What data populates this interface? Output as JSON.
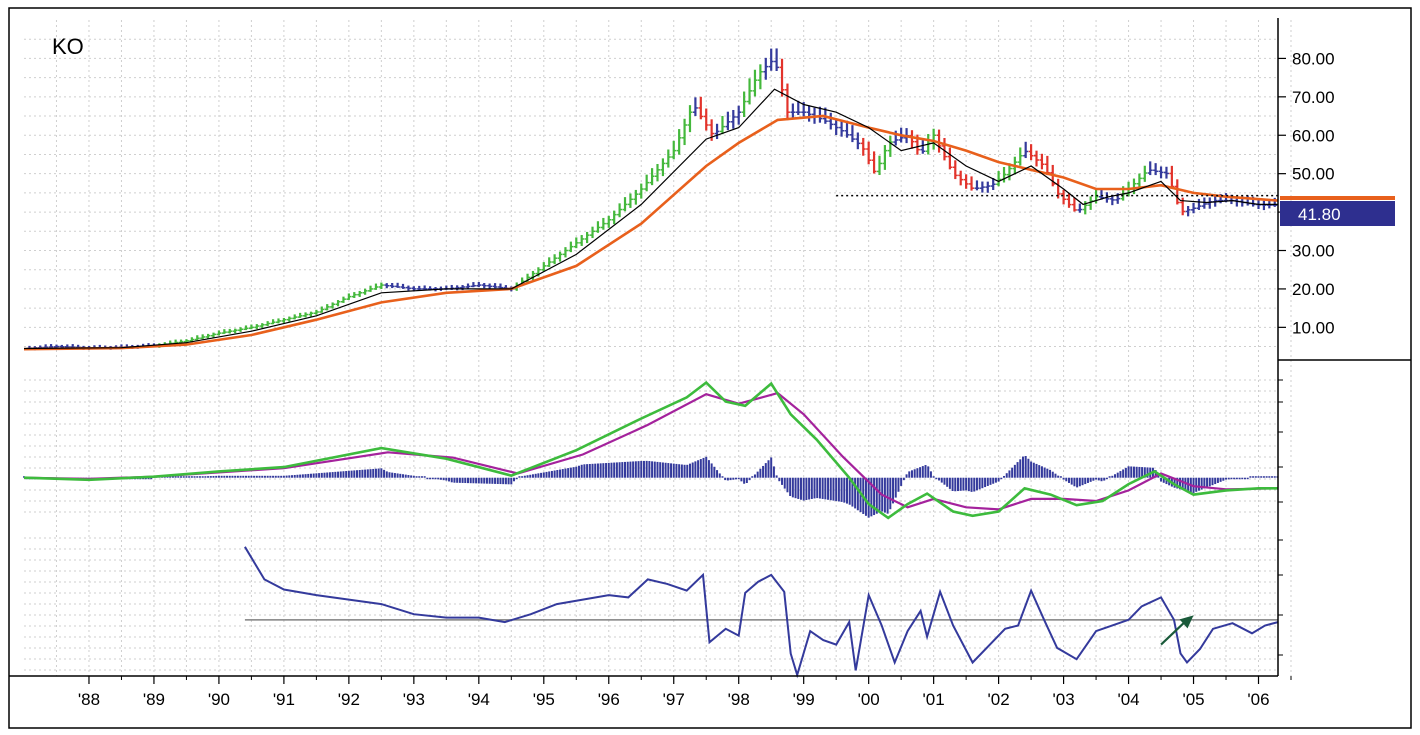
{
  "ticker": "KO",
  "last_price_label": "41.80",
  "colors": {
    "up_bar": "#44b83c",
    "down_bar": "#e2332b",
    "neutral_bar": "#343a9c",
    "sma_fast": "#000000",
    "sma_slow": "#e8601c",
    "macd": "#3dbb3d",
    "signal": "#a4229c",
    "histogram": "#343a9c",
    "indicator": "#343a9c",
    "zero_line": "#808080",
    "arrow": "#1a5a3a",
    "price_tag": "#2e2f8f",
    "grid": "#cfcfcf"
  },
  "chart_data": [
    {
      "type": "ohlc",
      "panel": "price",
      "ticker": "KO",
      "y_ticks": [
        "80.00",
        "70.00",
        "60.00",
        "50.00",
        "40.00",
        "30.00",
        "20.00",
        "10.00"
      ],
      "y_tick_values": [
        80,
        70,
        60,
        50,
        40,
        30,
        20,
        10
      ],
      "ylim": [
        1.5,
        90
      ],
      "xlim": [
        1987.0,
        2006.3
      ],
      "x_ticks": [
        "'88",
        "'89",
        "'90",
        "'91",
        "'92",
        "'93",
        "'94",
        "'95",
        "'96",
        "'97",
        "'98",
        "'99",
        "'00",
        "'01",
        "'02",
        "'03",
        "'04",
        "'05",
        "'06"
      ],
      "x_tick_values": [
        1988,
        1989,
        1990,
        1991,
        1992,
        1993,
        1994,
        1995,
        1996,
        1997,
        1998,
        1999,
        2000,
        2001,
        2002,
        2003,
        2004,
        2005,
        2006
      ],
      "last_price": 41.8,
      "support_line": {
        "value": 44.3,
        "from": 1999.5,
        "to": 2006.3
      },
      "close_anchors": [
        [
          1987.0,
          4.5
        ],
        [
          1987.5,
          5
        ],
        [
          1988.0,
          4.6
        ],
        [
          1988.5,
          4.8
        ],
        [
          1989.0,
          5.2
        ],
        [
          1989.5,
          6.5
        ],
        [
          1990.0,
          8.5
        ],
        [
          1990.5,
          10
        ],
        [
          1991.0,
          12
        ],
        [
          1991.5,
          14
        ],
        [
          1992.0,
          18
        ],
        [
          1992.5,
          21
        ],
        [
          1993.0,
          20
        ],
        [
          1993.5,
          20
        ],
        [
          1994.0,
          21
        ],
        [
          1994.5,
          20
        ],
        [
          1995.0,
          26
        ],
        [
          1995.5,
          32
        ],
        [
          1996.0,
          38
        ],
        [
          1996.5,
          46
        ],
        [
          1997.0,
          56
        ],
        [
          1997.3,
          68
        ],
        [
          1997.6,
          60
        ],
        [
          1998.0,
          66
        ],
        [
          1998.3,
          76
        ],
        [
          1998.55,
          80
        ],
        [
          1998.75,
          66
        ],
        [
          1999.0,
          66
        ],
        [
          1999.3,
          64
        ],
        [
          1999.6,
          61
        ],
        [
          1999.9,
          57
        ],
        [
          2000.1,
          50
        ],
        [
          2000.3,
          58
        ],
        [
          2000.6,
          60
        ],
        [
          2000.8,
          55
        ],
        [
          2001.0,
          60
        ],
        [
          2001.3,
          50
        ],
        [
          2001.6,
          46
        ],
        [
          2001.9,
          47
        ],
        [
          2002.1,
          50
        ],
        [
          2002.4,
          56
        ],
        [
          2002.7,
          52
        ],
        [
          2002.9,
          45
        ],
        [
          2003.2,
          40
        ],
        [
          2003.5,
          44
        ],
        [
          2003.8,
          43
        ],
        [
          2004.0,
          46
        ],
        [
          2004.3,
          51
        ],
        [
          2004.6,
          50
        ],
        [
          2004.8,
          40
        ],
        [
          2005.0,
          41
        ],
        [
          2005.3,
          43
        ],
        [
          2005.6,
          43
        ],
        [
          2005.9,
          42
        ],
        [
          2006.1,
          41.8
        ],
        [
          2006.3,
          41.8
        ]
      ],
      "sma_fast_anchors": [
        [
          1987.0,
          4.5
        ],
        [
          1988.5,
          4.7
        ],
        [
          1989.5,
          6
        ],
        [
          1990.5,
          9
        ],
        [
          1991.5,
          13
        ],
        [
          1992.5,
          19
        ],
        [
          1993.5,
          20
        ],
        [
          1994.5,
          20
        ],
        [
          1995.5,
          29
        ],
        [
          1996.5,
          42
        ],
        [
          1997.5,
          59
        ],
        [
          1998.0,
          62
        ],
        [
          1998.55,
          72
        ],
        [
          1999.0,
          68
        ],
        [
          1999.5,
          66
        ],
        [
          2000.0,
          62
        ],
        [
          2000.5,
          56
        ],
        [
          2001.0,
          58
        ],
        [
          2001.5,
          52
        ],
        [
          2002.0,
          48
        ],
        [
          2002.5,
          52
        ],
        [
          2003.0,
          46
        ],
        [
          2003.3,
          42
        ],
        [
          2003.7,
          44
        ],
        [
          2004.0,
          45
        ],
        [
          2004.5,
          48
        ],
        [
          2004.8,
          43
        ],
        [
          2005.2,
          42.5
        ],
        [
          2005.6,
          43
        ],
        [
          2006.0,
          42
        ],
        [
          2006.3,
          42
        ]
      ],
      "sma_slow_anchors": [
        [
          1987.0,
          4.3
        ],
        [
          1988.5,
          4.6
        ],
        [
          1989.5,
          5.5
        ],
        [
          1990.5,
          8
        ],
        [
          1991.5,
          12
        ],
        [
          1992.5,
          16.5
        ],
        [
          1993.5,
          19
        ],
        [
          1994.5,
          20
        ],
        [
          1995.5,
          26
        ],
        [
          1996.5,
          37
        ],
        [
          1997.5,
          52
        ],
        [
          1998.0,
          58
        ],
        [
          1998.6,
          64
        ],
        [
          1999.3,
          65
        ],
        [
          2000.0,
          62
        ],
        [
          2000.5,
          60
        ],
        [
          2001.0,
          58.5
        ],
        [
          2001.5,
          56
        ],
        [
          2002.0,
          53
        ],
        [
          2002.5,
          51
        ],
        [
          2003.0,
          49
        ],
        [
          2003.5,
          46
        ],
        [
          2004.0,
          46
        ],
        [
          2004.5,
          47
        ],
        [
          2005.0,
          45
        ],
        [
          2005.5,
          44
        ],
        [
          2006.3,
          43
        ]
      ]
    },
    {
      "type": "line",
      "panel": "macd",
      "ylim": [
        -4,
        10
      ],
      "xlim": [
        1987.0,
        2006.3
      ],
      "series": [
        {
          "role": "macd",
          "points": [
            [
              1987.0,
              0
            ],
            [
              1988.0,
              -0.2
            ],
            [
              1989.0,
              0.1
            ],
            [
              1990.0,
              0.6
            ],
            [
              1991.0,
              1.0
            ],
            [
              1992.5,
              2.8
            ],
            [
              1993.5,
              1.8
            ],
            [
              1994.5,
              0.2
            ],
            [
              1995.5,
              2.6
            ],
            [
              1996.5,
              5.6
            ],
            [
              1997.2,
              7.6
            ],
            [
              1997.5,
              9.0
            ],
            [
              1997.8,
              7.2
            ],
            [
              1998.1,
              6.8
            ],
            [
              1998.5,
              8.9
            ],
            [
              1998.8,
              6.0
            ],
            [
              1999.2,
              3.6
            ],
            [
              1999.7,
              0.0
            ],
            [
              2000.0,
              -2.5
            ],
            [
              2000.3,
              -3.8
            ],
            [
              2000.6,
              -2.5
            ],
            [
              2000.9,
              -1.5
            ],
            [
              2001.3,
              -3.2
            ],
            [
              2001.6,
              -3.6
            ],
            [
              2002.0,
              -3.2
            ],
            [
              2002.4,
              -1.0
            ],
            [
              2002.8,
              -1.6
            ],
            [
              2003.2,
              -2.6
            ],
            [
              2003.6,
              -2.2
            ],
            [
              2004.0,
              -0.6
            ],
            [
              2004.4,
              0.6
            ],
            [
              2004.7,
              -0.6
            ],
            [
              2005.0,
              -1.6
            ],
            [
              2005.5,
              -1.2
            ],
            [
              2006.0,
              -1.0
            ],
            [
              2006.3,
              -1.0
            ]
          ]
        },
        {
          "role": "signal",
          "points": [
            [
              1987.0,
              0
            ],
            [
              1988.0,
              -0.1
            ],
            [
              1989.0,
              0.1
            ],
            [
              1990.0,
              0.5
            ],
            [
              1991.0,
              0.9
            ],
            [
              1992.6,
              2.4
            ],
            [
              1993.6,
              1.9
            ],
            [
              1994.6,
              0.4
            ],
            [
              1995.6,
              2.2
            ],
            [
              1996.6,
              5.0
            ],
            [
              1997.5,
              7.9
            ],
            [
              1998.0,
              7.0
            ],
            [
              1998.6,
              8.0
            ],
            [
              1999.0,
              6.0
            ],
            [
              1999.6,
              2.0
            ],
            [
              2000.2,
              -1.6
            ],
            [
              2000.6,
              -2.8
            ],
            [
              2001.0,
              -2.0
            ],
            [
              2001.5,
              -2.8
            ],
            [
              2002.0,
              -3.0
            ],
            [
              2002.5,
              -2.0
            ],
            [
              2003.0,
              -2.0
            ],
            [
              2003.5,
              -2.2
            ],
            [
              2004.0,
              -1.2
            ],
            [
              2004.5,
              0.4
            ],
            [
              2005.0,
              -0.8
            ],
            [
              2005.5,
              -1.1
            ],
            [
              2006.3,
              -1.0
            ]
          ]
        }
      ]
    },
    {
      "type": "line",
      "panel": "indicator",
      "ylim": [
        -50,
        80
      ],
      "xlim": [
        1987.0,
        2006.3
      ],
      "reference_level": 0,
      "series": [
        {
          "role": "indicator",
          "points": [
            [
              1990.4,
              65
            ],
            [
              1990.7,
              36
            ],
            [
              1991.0,
              27
            ],
            [
              1991.5,
              22
            ],
            [
              1992.0,
              18
            ],
            [
              1992.5,
              14
            ],
            [
              1993.0,
              5
            ],
            [
              1993.5,
              2
            ],
            [
              1994.0,
              2
            ],
            [
              1994.4,
              -2
            ],
            [
              1994.8,
              5
            ],
            [
              1995.2,
              14
            ],
            [
              1995.6,
              18
            ],
            [
              1996.0,
              22
            ],
            [
              1996.3,
              20
            ],
            [
              1996.6,
              36
            ],
            [
              1996.9,
              32
            ],
            [
              1997.2,
              26
            ],
            [
              1997.45,
              40
            ],
            [
              1997.55,
              -20
            ],
            [
              1997.8,
              -8
            ],
            [
              1998.0,
              -14
            ],
            [
              1998.1,
              24
            ],
            [
              1998.3,
              34
            ],
            [
              1998.5,
              40
            ],
            [
              1998.7,
              25
            ],
            [
              1998.8,
              -30
            ],
            [
              1998.9,
              -49
            ],
            [
              1999.1,
              -10
            ],
            [
              1999.3,
              -18
            ],
            [
              1999.5,
              -22
            ],
            [
              1999.7,
              -2
            ],
            [
              1999.8,
              -45
            ],
            [
              2000.0,
              22
            ],
            [
              2000.2,
              -5
            ],
            [
              2000.4,
              -38
            ],
            [
              2000.6,
              -10
            ],
            [
              2000.8,
              8
            ],
            [
              2000.9,
              -15
            ],
            [
              2001.1,
              25
            ],
            [
              2001.3,
              -5
            ],
            [
              2001.6,
              -38
            ],
            [
              2001.9,
              -20
            ],
            [
              2002.1,
              -8
            ],
            [
              2002.3,
              -5
            ],
            [
              2002.5,
              26
            ],
            [
              2002.7,
              0
            ],
            [
              2002.9,
              -25
            ],
            [
              2003.2,
              -35
            ],
            [
              2003.5,
              -10
            ],
            [
              2003.8,
              -4
            ],
            [
              2004.0,
              0
            ],
            [
              2004.2,
              12
            ],
            [
              2004.5,
              20
            ],
            [
              2004.7,
              0
            ],
            [
              2004.8,
              -30
            ],
            [
              2004.9,
              -38
            ],
            [
              2005.1,
              -26
            ],
            [
              2005.3,
              -8
            ],
            [
              2005.6,
              -3
            ],
            [
              2005.9,
              -12
            ],
            [
              2006.1,
              -5
            ],
            [
              2006.3,
              -2
            ]
          ]
        }
      ]
    }
  ]
}
